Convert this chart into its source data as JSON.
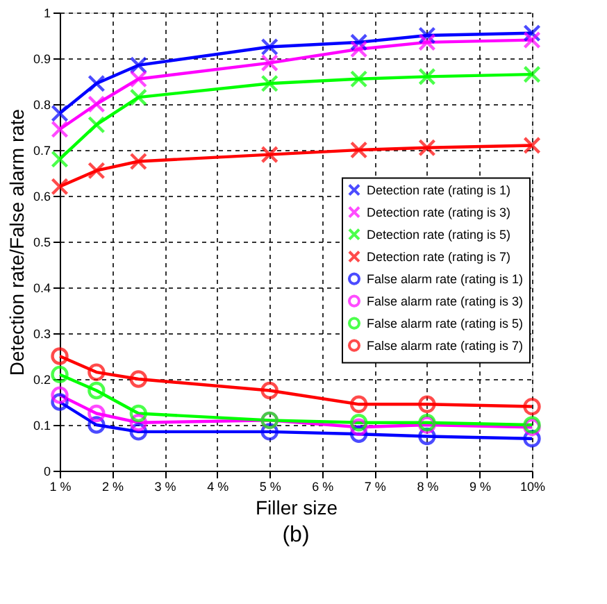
{
  "chart_data": {
    "type": "line",
    "title": "(b)",
    "xlabel": "Filler size",
    "ylabel": "Detection rate/False alarm rate",
    "x": [
      1,
      1.7,
      2.5,
      5,
      6.7,
      8,
      10
    ],
    "xlim": [
      1,
      10
    ],
    "xticks": [
      {
        "value": 1,
        "label": "1 %"
      },
      {
        "value": 2,
        "label": "2 %"
      },
      {
        "value": 3,
        "label": "3 %"
      },
      {
        "value": 4,
        "label": "4 %"
      },
      {
        "value": 5,
        "label": "5 %"
      },
      {
        "value": 6,
        "label": "6 %"
      },
      {
        "value": 7,
        "label": "7 %"
      },
      {
        "value": 8,
        "label": "8 %"
      },
      {
        "value": 9,
        "label": "9 %"
      },
      {
        "value": 10,
        "label": "10%"
      }
    ],
    "ylim": [
      0,
      1
    ],
    "yticks": [
      0,
      0.1,
      0.2,
      0.3,
      0.4,
      0.5,
      0.6,
      0.7,
      0.8,
      0.9,
      1
    ],
    "grid": true,
    "legend": "right",
    "line_style": "solid",
    "series": [
      {
        "name": "Detection rate (rating is 1)",
        "color": "#0000ff",
        "marker": "cross",
        "values": [
          0.78,
          0.845,
          0.885,
          0.925,
          0.935,
          0.95,
          0.955
        ]
      },
      {
        "name": "Detection rate (rating is 3)",
        "color": "#ff00ff",
        "marker": "cross",
        "values": [
          0.745,
          0.8,
          0.855,
          0.89,
          0.92,
          0.935,
          0.94
        ]
      },
      {
        "name": "Detection rate (rating is 5)",
        "color": "#00ff00",
        "marker": "cross",
        "values": [
          0.68,
          0.755,
          0.815,
          0.845,
          0.855,
          0.86,
          0.865
        ]
      },
      {
        "name": "Detection rate (rating is 7)",
        "color": "#ff0000",
        "marker": "cross",
        "values": [
          0.62,
          0.655,
          0.675,
          0.69,
          0.7,
          0.705,
          0.71
        ]
      },
      {
        "name": "False alarm rate (rating is 1)",
        "color": "#0000ff",
        "marker": "circle",
        "values": [
          0.15,
          0.1,
          0.085,
          0.085,
          0.08,
          0.075,
          0.07
        ]
      },
      {
        "name": "False alarm rate (rating is 3)",
        "color": "#ff00ff",
        "marker": "circle",
        "values": [
          0.165,
          0.125,
          0.105,
          0.11,
          0.095,
          0.1,
          0.095
        ]
      },
      {
        "name": "False alarm rate (rating is 5)",
        "color": "#00ff00",
        "marker": "circle",
        "values": [
          0.21,
          0.175,
          0.125,
          0.11,
          0.105,
          0.105,
          0.1
        ]
      },
      {
        "name": "False alarm rate (rating is 7)",
        "color": "#ff0000",
        "marker": "circle",
        "values": [
          0.25,
          0.215,
          0.2,
          0.175,
          0.145,
          0.145,
          0.14
        ]
      }
    ]
  }
}
